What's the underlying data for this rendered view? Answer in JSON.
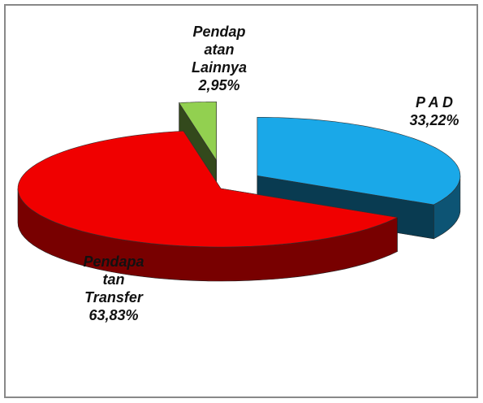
{
  "chart_data": {
    "type": "pie3d",
    "categories": [
      "P A D",
      "Pendapa\ntan\nTransfer",
      "Pendap\natan\nLainnya"
    ],
    "values": [
      33.22,
      63.83,
      2.95
    ],
    "value_labels": [
      "33,22%",
      "63,83%",
      "2,95%"
    ],
    "colors": [
      "#1aa8e8",
      "#f00000",
      "#92d050"
    ]
  }
}
